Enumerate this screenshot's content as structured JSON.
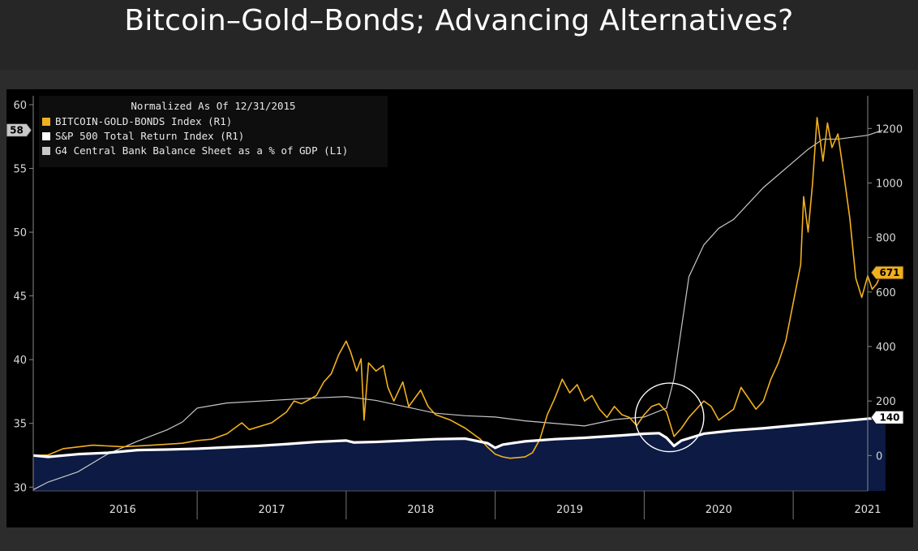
{
  "title": "Bitcoin–Gold–Bonds; Advancing Alternatives?",
  "colors": {
    "background": "#000000",
    "btc_gold_bonds": "#f2b01e",
    "spx": "#ffffff",
    "g4": "#c8c8c8",
    "area_fill": "#0c1a44"
  },
  "chart_data": {
    "type": "line",
    "legend_placement": "top-left",
    "legend_header": "Normalized As Of 12/31/2015",
    "x_ticks": [
      "2016",
      "2017",
      "2018",
      "2019",
      "2020",
      "2021"
    ],
    "xlim": [
      2015.9,
      2021.5
    ],
    "y_left": {
      "ticks": [
        30,
        35,
        40,
        45,
        50,
        55,
        60
      ],
      "range": [
        29.7,
        60.7
      ]
    },
    "y_right": {
      "ticks": [
        0,
        200,
        400,
        600,
        800,
        1000,
        1200
      ],
      "range": [
        -130,
        1320
      ]
    },
    "series": [
      {
        "name": "BITCOIN-GOLD-BONDS Index (R1)",
        "axis": "right",
        "last_value": "671",
        "points": [
          [
            2015.9,
            0
          ],
          [
            2016.0,
            2
          ],
          [
            2016.1,
            25
          ],
          [
            2016.3,
            38
          ],
          [
            2016.5,
            32
          ],
          [
            2016.7,
            38
          ],
          [
            2016.9,
            45
          ],
          [
            2017.0,
            55
          ],
          [
            2017.1,
            60
          ],
          [
            2017.2,
            80
          ],
          [
            2017.3,
            120
          ],
          [
            2017.35,
            95
          ],
          [
            2017.5,
            120
          ],
          [
            2017.6,
            160
          ],
          [
            2017.65,
            200
          ],
          [
            2017.7,
            190
          ],
          [
            2017.8,
            220
          ],
          [
            2017.85,
            270
          ],
          [
            2017.9,
            300
          ],
          [
            2017.95,
            370
          ],
          [
            2018.0,
            420
          ],
          [
            2018.03,
            380
          ],
          [
            2018.07,
            310
          ],
          [
            2018.1,
            355
          ],
          [
            2018.12,
            130
          ],
          [
            2018.15,
            340
          ],
          [
            2018.2,
            310
          ],
          [
            2018.25,
            330
          ],
          [
            2018.28,
            250
          ],
          [
            2018.32,
            200
          ],
          [
            2018.38,
            270
          ],
          [
            2018.42,
            180
          ],
          [
            2018.5,
            240
          ],
          [
            2018.55,
            180
          ],
          [
            2018.6,
            150
          ],
          [
            2018.7,
            130
          ],
          [
            2018.8,
            100
          ],
          [
            2018.85,
            80
          ],
          [
            2018.9,
            60
          ],
          [
            2018.95,
            30
          ],
          [
            2019.0,
            5
          ],
          [
            2019.05,
            -5
          ],
          [
            2019.1,
            -10
          ],
          [
            2019.2,
            -5
          ],
          [
            2019.25,
            10
          ],
          [
            2019.3,
            60
          ],
          [
            2019.35,
            150
          ],
          [
            2019.4,
            210
          ],
          [
            2019.45,
            280
          ],
          [
            2019.5,
            230
          ],
          [
            2019.55,
            260
          ],
          [
            2019.6,
            200
          ],
          [
            2019.65,
            220
          ],
          [
            2019.7,
            170
          ],
          [
            2019.75,
            140
          ],
          [
            2019.8,
            180
          ],
          [
            2019.85,
            150
          ],
          [
            2019.9,
            140
          ],
          [
            2019.95,
            110
          ],
          [
            2020.0,
            150
          ],
          [
            2020.05,
            180
          ],
          [
            2020.1,
            190
          ],
          [
            2020.15,
            160
          ],
          [
            2020.2,
            70
          ],
          [
            2020.25,
            100
          ],
          [
            2020.3,
            140
          ],
          [
            2020.35,
            170
          ],
          [
            2020.4,
            200
          ],
          [
            2020.45,
            180
          ],
          [
            2020.5,
            130
          ],
          [
            2020.6,
            170
          ],
          [
            2020.65,
            250
          ],
          [
            2020.7,
            210
          ],
          [
            2020.75,
            170
          ],
          [
            2020.8,
            200
          ],
          [
            2020.85,
            280
          ],
          [
            2020.9,
            340
          ],
          [
            2020.95,
            420
          ],
          [
            2021.0,
            560
          ],
          [
            2021.05,
            700
          ],
          [
            2021.07,
            950
          ],
          [
            2021.1,
            820
          ],
          [
            2021.13,
            1000
          ],
          [
            2021.16,
            1240
          ],
          [
            2021.2,
            1080
          ],
          [
            2021.23,
            1220
          ],
          [
            2021.26,
            1130
          ],
          [
            2021.3,
            1180
          ],
          [
            2021.34,
            1030
          ],
          [
            2021.38,
            870
          ],
          [
            2021.42,
            650
          ],
          [
            2021.46,
            580
          ],
          [
            2021.5,
            660
          ],
          [
            2021.53,
            610
          ],
          [
            2021.56,
            630
          ],
          [
            2021.6,
            680
          ],
          [
            2021.62,
            671
          ]
        ]
      },
      {
        "name": "S&P 500 Total Return Index (R1)",
        "axis": "right",
        "last_value": "140",
        "points": [
          [
            2015.9,
            0
          ],
          [
            2016.0,
            -5
          ],
          [
            2016.2,
            5
          ],
          [
            2016.4,
            10
          ],
          [
            2016.6,
            20
          ],
          [
            2016.8,
            22
          ],
          [
            2017.0,
            25
          ],
          [
            2017.2,
            30
          ],
          [
            2017.4,
            35
          ],
          [
            2017.6,
            42
          ],
          [
            2017.8,
            50
          ],
          [
            2018.0,
            55
          ],
          [
            2018.05,
            48
          ],
          [
            2018.2,
            50
          ],
          [
            2018.4,
            55
          ],
          [
            2018.6,
            60
          ],
          [
            2018.8,
            62
          ],
          [
            2018.95,
            45
          ],
          [
            2019.0,
            28
          ],
          [
            2019.05,
            40
          ],
          [
            2019.2,
            52
          ],
          [
            2019.4,
            60
          ],
          [
            2019.6,
            65
          ],
          [
            2019.8,
            72
          ],
          [
            2020.0,
            80
          ],
          [
            2020.1,
            82
          ],
          [
            2020.15,
            65
          ],
          [
            2020.2,
            35
          ],
          [
            2020.25,
            55
          ],
          [
            2020.4,
            80
          ],
          [
            2020.6,
            92
          ],
          [
            2020.8,
            100
          ],
          [
            2021.0,
            110
          ],
          [
            2021.2,
            120
          ],
          [
            2021.4,
            130
          ],
          [
            2021.6,
            140
          ],
          [
            2021.62,
            140
          ]
        ]
      },
      {
        "name": "G4 Central Bank Balance Sheet as a % of GDP (L1)",
        "axis": "left",
        "last_value": "58",
        "points": [
          [
            2015.9,
            29.8
          ],
          [
            2016.0,
            30.4
          ],
          [
            2016.2,
            31.2
          ],
          [
            2016.4,
            32.6
          ],
          [
            2016.6,
            33.6
          ],
          [
            2016.8,
            34.5
          ],
          [
            2016.9,
            35.1
          ],
          [
            2017.0,
            36.2
          ],
          [
            2017.2,
            36.6
          ],
          [
            2017.5,
            36.8
          ],
          [
            2017.8,
            37.0
          ],
          [
            2018.0,
            37.1
          ],
          [
            2018.2,
            36.8
          ],
          [
            2018.4,
            36.3
          ],
          [
            2018.6,
            35.8
          ],
          [
            2018.8,
            35.6
          ],
          [
            2019.0,
            35.5
          ],
          [
            2019.2,
            35.2
          ],
          [
            2019.4,
            35.0
          ],
          [
            2019.6,
            34.8
          ],
          [
            2019.8,
            35.3
          ],
          [
            2020.0,
            35.5
          ],
          [
            2020.15,
            36.2
          ],
          [
            2020.2,
            38.5
          ],
          [
            2020.25,
            42.5
          ],
          [
            2020.3,
            46.5
          ],
          [
            2020.4,
            49.0
          ],
          [
            2020.5,
            50.3
          ],
          [
            2020.6,
            51.0
          ],
          [
            2020.8,
            53.5
          ],
          [
            2021.0,
            55.5
          ],
          [
            2021.1,
            56.5
          ],
          [
            2021.2,
            57.3
          ],
          [
            2021.3,
            57.3
          ],
          [
            2021.5,
            57.6
          ],
          [
            2021.6,
            58.0
          ]
        ]
      }
    ],
    "annotation": {
      "type": "circle",
      "center": [
        2020.17,
        140
      ],
      "radius_years": 0.23
    }
  }
}
